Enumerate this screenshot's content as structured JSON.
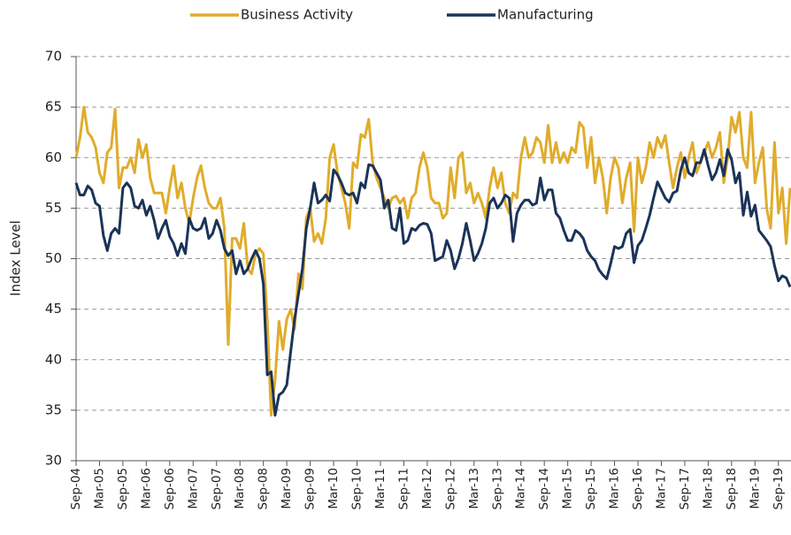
{
  "chart_data": {
    "type": "line",
    "y_label": "Index Level",
    "categories": [
      "Sep-04",
      null,
      null,
      null,
      null,
      null,
      "Mar-05",
      null,
      null,
      null,
      null,
      null,
      "Sep-05",
      null,
      null,
      null,
      null,
      null,
      "Mar-06",
      null,
      null,
      null,
      null,
      null,
      "Sep-06",
      null,
      null,
      null,
      null,
      null,
      "Mar-07",
      null,
      null,
      null,
      null,
      null,
      "Sep-07",
      null,
      null,
      null,
      null,
      null,
      "Mar-08",
      null,
      null,
      null,
      null,
      null,
      "Sep-08",
      null,
      null,
      null,
      null,
      null,
      "Mar-09",
      null,
      null,
      null,
      null,
      null,
      "Sep-09",
      null,
      null,
      null,
      null,
      null,
      "Mar-10",
      null,
      null,
      null,
      null,
      null,
      "Sep-10",
      null,
      null,
      null,
      null,
      null,
      "Mar-11",
      null,
      null,
      null,
      null,
      null,
      "Sep-11",
      null,
      null,
      null,
      null,
      null,
      "Mar-12",
      null,
      null,
      null,
      null,
      null,
      "Sep-12",
      null,
      null,
      null,
      null,
      null,
      "Mar-13",
      null,
      null,
      null,
      null,
      null,
      "Sep-13",
      null,
      null,
      null,
      null,
      null,
      "Mar-14",
      null,
      null,
      null,
      null,
      null,
      "Sep-14",
      null,
      null,
      null,
      null,
      null,
      "Mar-15",
      null,
      null,
      null,
      null,
      null,
      "Sep-15",
      null,
      null,
      null,
      null,
      null,
      "Mar-16",
      null,
      null,
      null,
      null,
      null,
      "Sep-16",
      null,
      null,
      null,
      null,
      null,
      "Mar-17",
      null,
      null,
      null,
      null,
      null,
      "Sep-17",
      null,
      null,
      null,
      null,
      null,
      "Mar-18",
      null,
      null,
      null,
      null,
      null,
      "Sep-18",
      null,
      null,
      null,
      null,
      null,
      "Mar-19",
      null,
      null,
      null,
      null,
      null,
      "Sep-19",
      null,
      null,
      null
    ],
    "series": [
      {
        "name": "Business Activity",
        "color": "#e0ac2b",
        "values": [
          60,
          62,
          65,
          62.5,
          62,
          61,
          58.5,
          57.5,
          60.5,
          61,
          64.8,
          57,
          59,
          59,
          60,
          58.5,
          61.8,
          60,
          61.3,
          58,
          56.5,
          56.5,
          56.5,
          54.5,
          57,
          59.2,
          56,
          57.5,
          55,
          53.5,
          56,
          58,
          59.2,
          57,
          55.5,
          55,
          55,
          56,
          53,
          41.5,
          52,
          52,
          51,
          53.5,
          49,
          48.5,
          50.5,
          51,
          50.5,
          44,
          34.5,
          38,
          43.8,
          41,
          44,
          45,
          43,
          48.5,
          47,
          54,
          55,
          51.7,
          52.5,
          51.5,
          54,
          60,
          61.3,
          58.5,
          57,
          55.5,
          53,
          59.5,
          59,
          62.3,
          62,
          63.8,
          59.5,
          58,
          57,
          56,
          55,
          56,
          56.2,
          55.5,
          56,
          54,
          56,
          56.5,
          59,
          60.5,
          59,
          56,
          55.5,
          55.5,
          54,
          54.5,
          59,
          56,
          60,
          60.5,
          56.5,
          57.5,
          55.5,
          56.5,
          55.5,
          54,
          57,
          59,
          57,
          58.5,
          55.5,
          54.5,
          56.5,
          56,
          60,
          62,
          60,
          60.5,
          62,
          61.5,
          59.5,
          63.2,
          59.5,
          61.5,
          59.5,
          60.5,
          59.5,
          61,
          60.5,
          63.5,
          63,
          59,
          62,
          57.5,
          60,
          58,
          54.5,
          58,
          60,
          59,
          55.5,
          58,
          59.5,
          52.7,
          60,
          57.5,
          59,
          61.5,
          60,
          62,
          61,
          62.2,
          59.5,
          57,
          59,
          60.5,
          58,
          60,
          61.5,
          58.5,
          59.5,
          60.5,
          61.5,
          60,
          61,
          62.5,
          57.5,
          60,
          64,
          62.5,
          64.5,
          60,
          59,
          64.5,
          57.5,
          59.5,
          61,
          55,
          53,
          61.5,
          54.5,
          57,
          51.5,
          57
        ]
      },
      {
        "name": "Manufacturing",
        "color": "#1b3358",
        "values": [
          57.5,
          56.3,
          56.3,
          57.2,
          56.8,
          55.5,
          55.2,
          52.3,
          50.8,
          52.5,
          53,
          52.5,
          57,
          57.5,
          57,
          55.2,
          55,
          55.8,
          54.3,
          55.2,
          53.8,
          52,
          53,
          53.8,
          52.2,
          51.5,
          50.3,
          51.5,
          50.5,
          54,
          53,
          52.8,
          53,
          54,
          52,
          52.5,
          53.8,
          52.8,
          51,
          50.3,
          50.8,
          48.5,
          49.8,
          48.5,
          49,
          50,
          50.8,
          50,
          47.5,
          38.5,
          38.8,
          34.5,
          36.5,
          36.8,
          37.5,
          40.8,
          44,
          46.5,
          49,
          53,
          55,
          57.5,
          55.5,
          55.8,
          56.3,
          55.7,
          58.8,
          58.3,
          57.5,
          56.5,
          56.3,
          56.5,
          55.5,
          57.5,
          57,
          59.3,
          59.2,
          58.5,
          57.8,
          55,
          55.8,
          53,
          52.8,
          55,
          51.5,
          51.8,
          53,
          52.8,
          53.3,
          53.5,
          53.4,
          52.5,
          49.8,
          50,
          50.2,
          51.8,
          50.8,
          49,
          50,
          51.5,
          53.5,
          51.8,
          49.8,
          50.5,
          51.5,
          53,
          55.5,
          56,
          55,
          55.5,
          56.3,
          56,
          51.7,
          54.5,
          55.3,
          55.8,
          55.8,
          55.3,
          55.5,
          58,
          55.8,
          56.8,
          56.8,
          54.5,
          54,
          52.8,
          51.8,
          51.8,
          52.8,
          52.5,
          52,
          50.8,
          50.2,
          49.8,
          48.9,
          48.4,
          48,
          49.5,
          51.2,
          51,
          51.2,
          52.5,
          52.9,
          49.6,
          51.3,
          51.8,
          53,
          54.3,
          56,
          57.6,
          56.8,
          56,
          55.6,
          56.5,
          56.7,
          58.8,
          60,
          58.5,
          58.2,
          59.5,
          59.5,
          60.8,
          59.2,
          57.8,
          58.5,
          59.8,
          58.2,
          60.8,
          59.8,
          57.5,
          58.5,
          54.3,
          56.6,
          54.2,
          55.3,
          52.8,
          52.3,
          51.8,
          51.2,
          49.3,
          47.8,
          48.3,
          48.1,
          47.2
        ]
      }
    ],
    "ylim": [
      30,
      70
    ],
    "yticks": [
      30,
      35,
      40,
      45,
      50,
      55,
      60,
      65,
      70
    ],
    "grid": true,
    "legend": "top"
  }
}
